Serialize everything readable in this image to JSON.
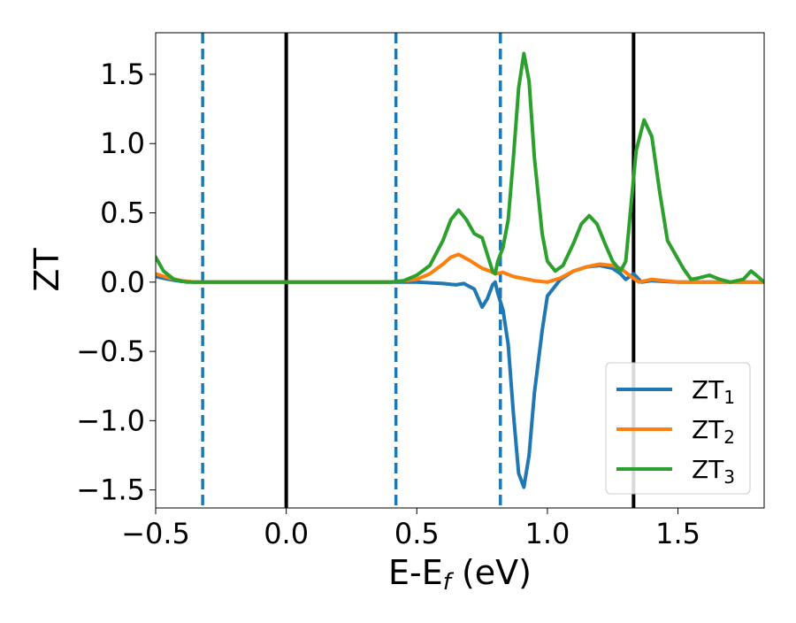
{
  "chart_data": {
    "type": "line",
    "title": "",
    "xlabel_main": "E-E",
    "xlabel_sub": "f",
    "xlabel_unit": " (eV)",
    "ylabel": "ZT",
    "xlim": [
      -0.5,
      1.83
    ],
    "ylim": [
      -1.63,
      1.8
    ],
    "grid": false,
    "legend_position": "lower-right",
    "x_ticks": [
      {
        "value": -0.5,
        "label": "−0.5"
      },
      {
        "value": 0.0,
        "label": "0.0"
      },
      {
        "value": 0.5,
        "label": "0.5"
      },
      {
        "value": 1.0,
        "label": "1.0"
      },
      {
        "value": 1.5,
        "label": "1.5"
      }
    ],
    "y_ticks": [
      {
        "value": 1.5,
        "label": "1.5"
      },
      {
        "value": 1.0,
        "label": "1.0"
      },
      {
        "value": 0.5,
        "label": "0.5"
      },
      {
        "value": 0.0,
        "label": "0.0"
      },
      {
        "value": -0.5,
        "label": "−0.5"
      },
      {
        "value": -1.0,
        "label": "−1.0"
      },
      {
        "value": -1.5,
        "label": "−1.5"
      }
    ],
    "vertical_lines": [
      {
        "x": -0.32,
        "style": "dashed",
        "color": "#1f77b4"
      },
      {
        "x": 0.0,
        "style": "solid",
        "color": "#000000"
      },
      {
        "x": 0.42,
        "style": "dashed",
        "color": "#1f77b4"
      },
      {
        "x": 0.82,
        "style": "dashed",
        "color": "#1f77b4"
      },
      {
        "x": 1.33,
        "style": "solid",
        "color": "#000000"
      }
    ],
    "series": [
      {
        "name": "ZT",
        "sub": "1",
        "color": "#1f77b4",
        "points": [
          [
            -0.5,
            0.04
          ],
          [
            -0.45,
            0.02
          ],
          [
            -0.4,
            0.005
          ],
          [
            -0.35,
            0.0
          ],
          [
            -0.3,
            0.0
          ],
          [
            0.0,
            0.0
          ],
          [
            0.3,
            0.0
          ],
          [
            0.5,
            0.0
          ],
          [
            0.6,
            -0.01
          ],
          [
            0.65,
            -0.02
          ],
          [
            0.68,
            -0.01
          ],
          [
            0.72,
            -0.05
          ],
          [
            0.75,
            -0.18
          ],
          [
            0.77,
            -0.12
          ],
          [
            0.79,
            -0.02
          ],
          [
            0.8,
            0.0
          ],
          [
            0.81,
            -0.08
          ],
          [
            0.83,
            -0.2
          ],
          [
            0.85,
            -0.45
          ],
          [
            0.87,
            -0.95
          ],
          [
            0.89,
            -1.38
          ],
          [
            0.91,
            -1.48
          ],
          [
            0.93,
            -1.25
          ],
          [
            0.95,
            -0.8
          ],
          [
            0.98,
            -0.35
          ],
          [
            1.0,
            -0.1
          ],
          [
            1.05,
            0.02
          ],
          [
            1.1,
            0.08
          ],
          [
            1.15,
            0.11
          ],
          [
            1.2,
            0.12
          ],
          [
            1.25,
            0.1
          ],
          [
            1.28,
            0.06
          ],
          [
            1.3,
            0.02
          ],
          [
            1.33,
            0.06
          ],
          [
            1.36,
            0.0
          ],
          [
            1.4,
            0.01
          ],
          [
            1.5,
            0.0
          ],
          [
            1.83,
            0.0
          ]
        ]
      },
      {
        "name": "ZT",
        "sub": "2",
        "color": "#ff7f0e",
        "points": [
          [
            -0.5,
            0.06
          ],
          [
            -0.45,
            0.03
          ],
          [
            -0.4,
            0.01
          ],
          [
            -0.35,
            0.0
          ],
          [
            -0.3,
            0.0
          ],
          [
            0.0,
            0.0
          ],
          [
            0.4,
            0.0
          ],
          [
            0.5,
            0.02
          ],
          [
            0.55,
            0.06
          ],
          [
            0.6,
            0.13
          ],
          [
            0.63,
            0.18
          ],
          [
            0.66,
            0.2
          ],
          [
            0.7,
            0.16
          ],
          [
            0.75,
            0.1
          ],
          [
            0.78,
            0.08
          ],
          [
            0.8,
            0.06
          ],
          [
            0.83,
            0.07
          ],
          [
            0.87,
            0.04
          ],
          [
            0.95,
            0.01
          ],
          [
            1.0,
            0.0
          ],
          [
            1.05,
            0.03
          ],
          [
            1.1,
            0.08
          ],
          [
            1.15,
            0.11
          ],
          [
            1.2,
            0.13
          ],
          [
            1.25,
            0.12
          ],
          [
            1.28,
            0.1
          ],
          [
            1.32,
            0.04
          ],
          [
            1.35,
            0.0
          ],
          [
            1.4,
            0.02
          ],
          [
            1.45,
            0.01
          ],
          [
            1.5,
            0.0
          ],
          [
            1.83,
            0.0
          ]
        ]
      },
      {
        "name": "ZT",
        "sub": "3",
        "color": "#2ca02c",
        "points": [
          [
            -0.5,
            0.18
          ],
          [
            -0.47,
            0.08
          ],
          [
            -0.43,
            0.02
          ],
          [
            -0.38,
            0.0
          ],
          [
            -0.3,
            0.0
          ],
          [
            0.0,
            0.0
          ],
          [
            0.4,
            0.0
          ],
          [
            0.45,
            0.01
          ],
          [
            0.5,
            0.05
          ],
          [
            0.55,
            0.12
          ],
          [
            0.6,
            0.3
          ],
          [
            0.63,
            0.45
          ],
          [
            0.66,
            0.52
          ],
          [
            0.69,
            0.45
          ],
          [
            0.72,
            0.35
          ],
          [
            0.75,
            0.32
          ],
          [
            0.77,
            0.2
          ],
          [
            0.79,
            0.08
          ],
          [
            0.8,
            0.06
          ],
          [
            0.81,
            0.15
          ],
          [
            0.83,
            0.25
          ],
          [
            0.85,
            0.45
          ],
          [
            0.87,
            0.9
          ],
          [
            0.89,
            1.4
          ],
          [
            0.91,
            1.65
          ],
          [
            0.93,
            1.45
          ],
          [
            0.95,
            0.9
          ],
          [
            0.98,
            0.35
          ],
          [
            1.0,
            0.15
          ],
          [
            1.03,
            0.08
          ],
          [
            1.06,
            0.12
          ],
          [
            1.1,
            0.28
          ],
          [
            1.13,
            0.42
          ],
          [
            1.16,
            0.48
          ],
          [
            1.19,
            0.42
          ],
          [
            1.22,
            0.28
          ],
          [
            1.25,
            0.15
          ],
          [
            1.28,
            0.08
          ],
          [
            1.3,
            0.15
          ],
          [
            1.32,
            0.55
          ],
          [
            1.34,
            0.95
          ],
          [
            1.37,
            1.17
          ],
          [
            1.4,
            1.05
          ],
          [
            1.43,
            0.65
          ],
          [
            1.46,
            0.3
          ],
          [
            1.49,
            0.2
          ],
          [
            1.52,
            0.1
          ],
          [
            1.55,
            0.02
          ],
          [
            1.58,
            0.03
          ],
          [
            1.62,
            0.05
          ],
          [
            1.66,
            0.02
          ],
          [
            1.7,
            0.0
          ],
          [
            1.75,
            0.02
          ],
          [
            1.78,
            0.08
          ],
          [
            1.8,
            0.05
          ],
          [
            1.83,
            0.0
          ]
        ]
      }
    ]
  }
}
